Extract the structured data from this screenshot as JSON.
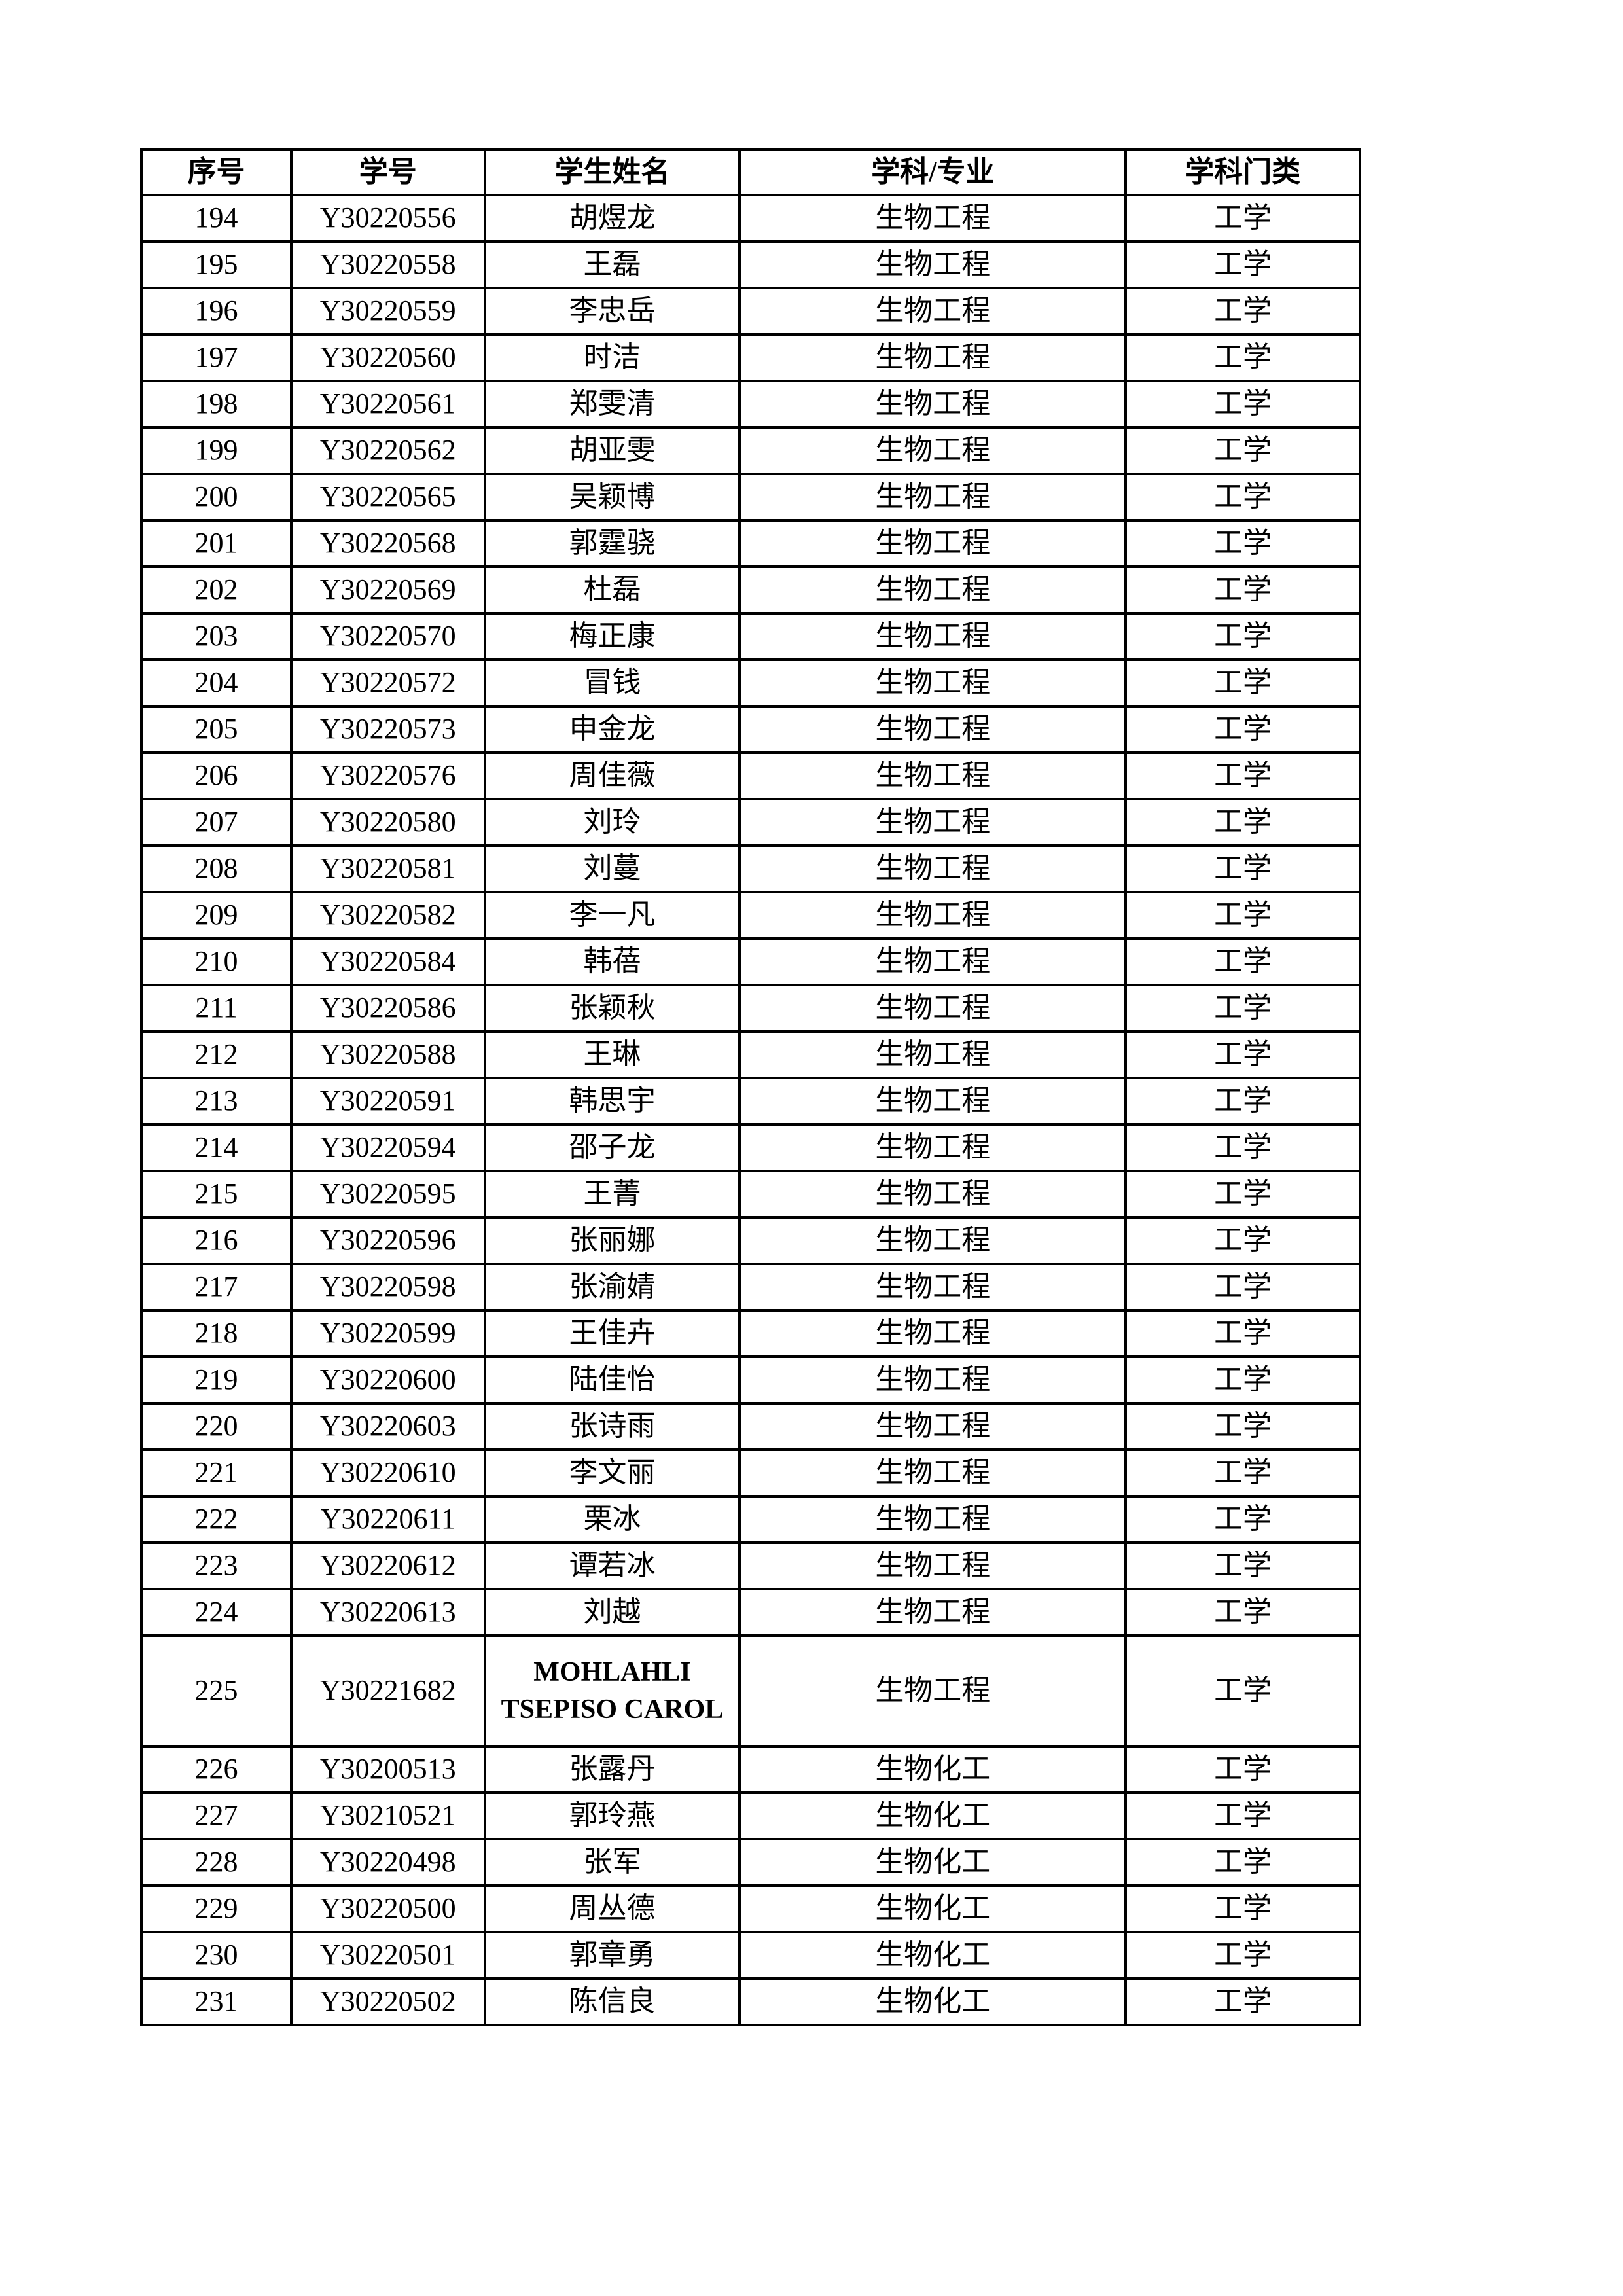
{
  "table": {
    "headers": [
      "序号",
      "学号",
      "学生姓名",
      "学科/专业",
      "学科门类"
    ],
    "rows": [
      [
        "194",
        "Y30220556",
        "胡煜龙",
        "生物工程",
        "工学"
      ],
      [
        "195",
        "Y30220558",
        "王磊",
        "生物工程",
        "工学"
      ],
      [
        "196",
        "Y30220559",
        "李忠岳",
        "生物工程",
        "工学"
      ],
      [
        "197",
        "Y30220560",
        "时洁",
        "生物工程",
        "工学"
      ],
      [
        "198",
        "Y30220561",
        "郑雯清",
        "生物工程",
        "工学"
      ],
      [
        "199",
        "Y30220562",
        "胡亚雯",
        "生物工程",
        "工学"
      ],
      [
        "200",
        "Y30220565",
        "吴颖博",
        "生物工程",
        "工学"
      ],
      [
        "201",
        "Y30220568",
        "郭霆骁",
        "生物工程",
        "工学"
      ],
      [
        "202",
        "Y30220569",
        "杜磊",
        "生物工程",
        "工学"
      ],
      [
        "203",
        "Y30220570",
        "梅正康",
        "生物工程",
        "工学"
      ],
      [
        "204",
        "Y30220572",
        "冒钱",
        "生物工程",
        "工学"
      ],
      [
        "205",
        "Y30220573",
        "申金龙",
        "生物工程",
        "工学"
      ],
      [
        "206",
        "Y30220576",
        "周佳薇",
        "生物工程",
        "工学"
      ],
      [
        "207",
        "Y30220580",
        "刘玲",
        "生物工程",
        "工学"
      ],
      [
        "208",
        "Y30220581",
        "刘蔓",
        "生物工程",
        "工学"
      ],
      [
        "209",
        "Y30220582",
        "李一凡",
        "生物工程",
        "工学"
      ],
      [
        "210",
        "Y30220584",
        "韩蓓",
        "生物工程",
        "工学"
      ],
      [
        "211",
        "Y30220586",
        "张颖秋",
        "生物工程",
        "工学"
      ],
      [
        "212",
        "Y30220588",
        "王琳",
        "生物工程",
        "工学"
      ],
      [
        "213",
        "Y30220591",
        "韩思宇",
        "生物工程",
        "工学"
      ],
      [
        "214",
        "Y30220594",
        "邵子龙",
        "生物工程",
        "工学"
      ],
      [
        "215",
        "Y30220595",
        "王菁",
        "生物工程",
        "工学"
      ],
      [
        "216",
        "Y30220596",
        "张丽娜",
        "生物工程",
        "工学"
      ],
      [
        "217",
        "Y30220598",
        "张渝婧",
        "生物工程",
        "工学"
      ],
      [
        "218",
        "Y30220599",
        "王佳卉",
        "生物工程",
        "工学"
      ],
      [
        "219",
        "Y30220600",
        "陆佳怡",
        "生物工程",
        "工学"
      ],
      [
        "220",
        "Y30220603",
        "张诗雨",
        "生物工程",
        "工学"
      ],
      [
        "221",
        "Y30220610",
        "李文丽",
        "生物工程",
        "工学"
      ],
      [
        "222",
        "Y30220611",
        "栗冰",
        "生物工程",
        "工学"
      ],
      [
        "223",
        "Y30220612",
        "谭若冰",
        "生物工程",
        "工学"
      ],
      [
        "224",
        "Y30220613",
        "刘越",
        "生物工程",
        "工学"
      ],
      [
        "225",
        "Y30221682",
        "MOHLAHLI TSEPISO CAROL",
        "生物工程",
        "工学"
      ],
      [
        "226",
        "Y30200513",
        "张露丹",
        "生物化工",
        "工学"
      ],
      [
        "227",
        "Y30210521",
        "郭玲燕",
        "生物化工",
        "工学"
      ],
      [
        "228",
        "Y30220498",
        "张军",
        "生物化工",
        "工学"
      ],
      [
        "229",
        "Y30220500",
        "周丛德",
        "生物化工",
        "工学"
      ],
      [
        "230",
        "Y30220501",
        "郭章勇",
        "生物化工",
        "工学"
      ],
      [
        "231",
        "Y30220502",
        "陈信良",
        "生物化工",
        "工学"
      ]
    ]
  }
}
